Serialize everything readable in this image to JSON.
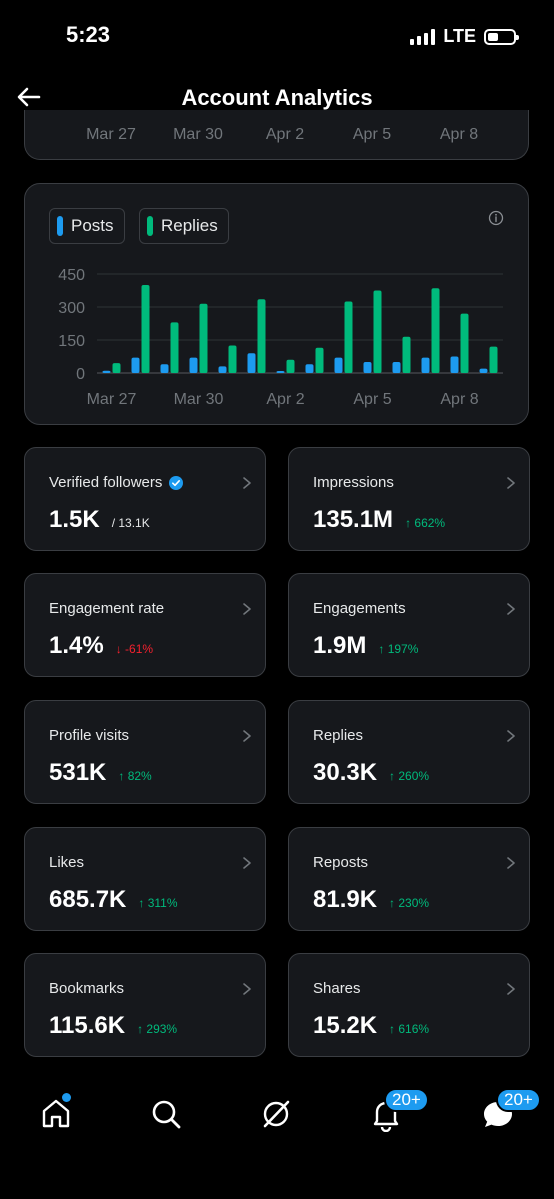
{
  "status": {
    "time": "5:23",
    "network": "LTE"
  },
  "header": {
    "title": "Account Analytics"
  },
  "top_card": {
    "x_labels": [
      "Mar 27",
      "Mar 30",
      "Apr 2",
      "Apr 5",
      "Apr 8"
    ]
  },
  "chart_card": {
    "legend": [
      {
        "label": "Posts",
        "color": "#1d9bf0"
      },
      {
        "label": "Replies",
        "color": "#00ba7c"
      }
    ]
  },
  "chart_data": {
    "type": "bar",
    "categories": [
      "Mar 27",
      "Mar 28",
      "Mar 29",
      "Mar 30",
      "Mar 31",
      "Apr 1",
      "Apr 2",
      "Apr 3",
      "Apr 4",
      "Apr 5",
      "Apr 6",
      "Apr 7",
      "Apr 8",
      "Apr 9"
    ],
    "x_tick_labels": [
      "Mar 27",
      "Mar 30",
      "Apr 2",
      "Apr 5",
      "Apr 8"
    ],
    "series": [
      {
        "name": "Posts",
        "color": "#1d9bf0",
        "values": [
          10,
          70,
          40,
          70,
          30,
          90,
          5,
          40,
          70,
          50,
          50,
          70,
          75,
          20
        ]
      },
      {
        "name": "Replies",
        "color": "#00ba7c",
        "values": [
          45,
          400,
          230,
          315,
          125,
          335,
          60,
          115,
          325,
          375,
          165,
          385,
          270,
          120
        ]
      }
    ],
    "y_ticks": [
      0,
      150,
      300,
      450
    ],
    "ylim": [
      0,
      450
    ],
    "grid": true,
    "legend_position": "top-left"
  },
  "stats": [
    {
      "title": "Verified followers",
      "value": "1.5K",
      "sub": "/ 13.1K",
      "verified": true
    },
    {
      "title": "Impressions",
      "value": "135.1M",
      "change": "↑ 662%",
      "direction": "up"
    },
    {
      "title": "Engagement rate",
      "value": "1.4%",
      "change": "↓ -61%",
      "direction": "down"
    },
    {
      "title": "Engagements",
      "value": "1.9M",
      "change": "↑ 197%",
      "direction": "up"
    },
    {
      "title": "Profile visits",
      "value": "531K",
      "change": "↑ 82%",
      "direction": "up"
    },
    {
      "title": "Replies",
      "value": "30.3K",
      "change": "↑ 260%",
      "direction": "up"
    },
    {
      "title": "Likes",
      "value": "685.7K",
      "change": "↑ 311%",
      "direction": "up"
    },
    {
      "title": "Reposts",
      "value": "81.9K",
      "change": "↑ 230%",
      "direction": "up"
    },
    {
      "title": "Bookmarks",
      "value": "115.6K",
      "change": "↑ 293%",
      "direction": "up"
    },
    {
      "title": "Shares",
      "value": "15.2K",
      "change": "↑ 616%",
      "direction": "up"
    }
  ],
  "bottom_nav": {
    "items": [
      {
        "icon": "home-icon"
      },
      {
        "icon": "search-icon"
      },
      {
        "icon": "grok-icon"
      },
      {
        "icon": "notifications-icon",
        "badge": "20+"
      },
      {
        "icon": "messages-icon",
        "badge": "20+"
      }
    ]
  },
  "colors": {
    "accent": "#1d9bf0",
    "positive": "#00ba7c",
    "negative": "#f4212e",
    "card": "#16181c",
    "border": "#3a3d42"
  }
}
